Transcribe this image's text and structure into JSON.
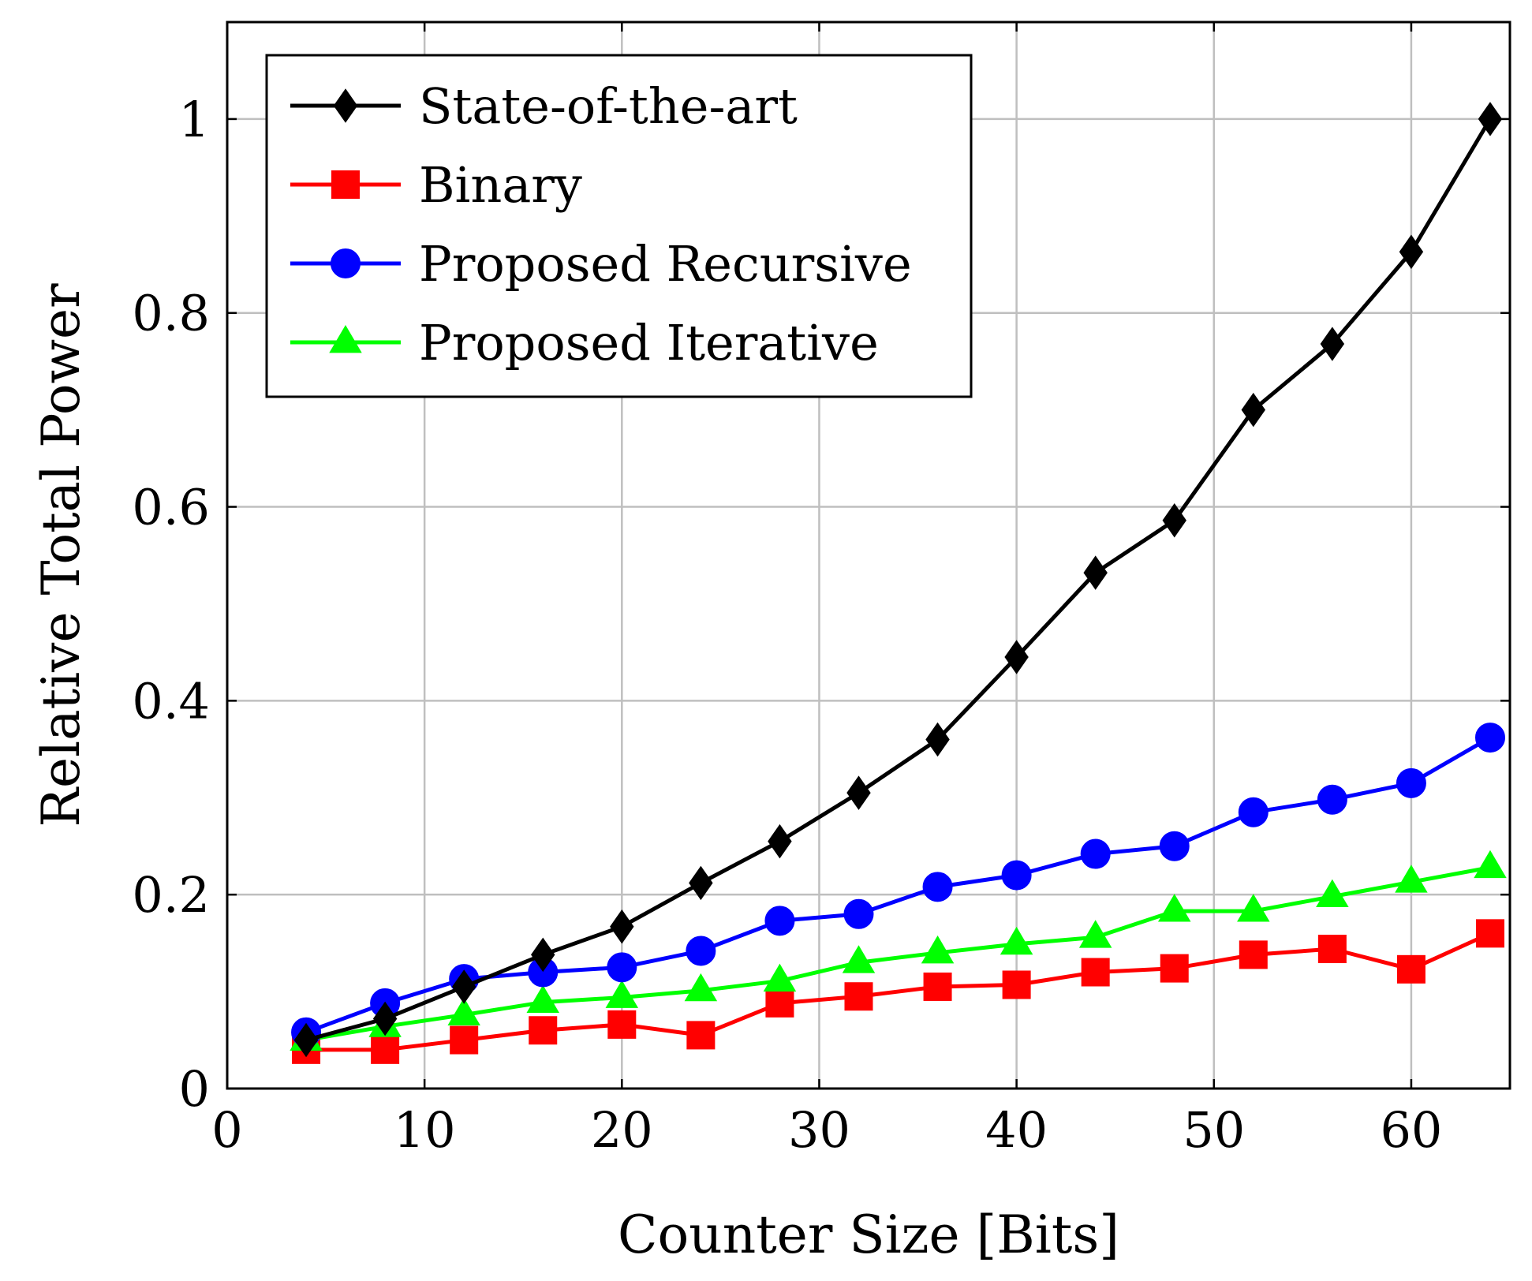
{
  "chart_data": {
    "type": "line",
    "xlabel": "Counter Size [Bits]",
    "ylabel": "Relative Total Power",
    "xlim": [
      0,
      65
    ],
    "ylim": [
      0,
      1.1
    ],
    "x_ticks": [
      0,
      10,
      20,
      30,
      40,
      50,
      60
    ],
    "y_ticks": [
      0,
      0.2,
      0.4,
      0.6,
      0.8,
      1
    ],
    "x_tick_labels": [
      "0",
      "10",
      "20",
      "30",
      "40",
      "50",
      "60"
    ],
    "y_tick_labels": [
      "0",
      "0.2",
      "0.4",
      "0.6",
      "0.8",
      "1"
    ],
    "grid": true,
    "legend_position": "top-left",
    "x": [
      4,
      8,
      12,
      16,
      20,
      24,
      28,
      32,
      36,
      40,
      44,
      48,
      52,
      56,
      60,
      64
    ],
    "series": [
      {
        "name": "State-of-the-art",
        "color": "#000000",
        "marker": "diamond",
        "values": [
          0.05,
          0.072,
          0.105,
          0.138,
          0.167,
          0.212,
          0.255,
          0.305,
          0.36,
          0.445,
          0.532,
          0.586,
          0.7,
          0.768,
          0.863,
          1.0
        ]
      },
      {
        "name": "Binary",
        "color": "#ff0000",
        "marker": "square",
        "values": [
          0.04,
          0.04,
          0.05,
          0.06,
          0.066,
          0.055,
          0.088,
          0.095,
          0.105,
          0.107,
          0.12,
          0.124,
          0.138,
          0.144,
          0.123,
          0.16
        ]
      },
      {
        "name": "Proposed Recursive",
        "color": "#0000ff",
        "marker": "circle",
        "values": [
          0.058,
          0.088,
          0.113,
          0.12,
          0.125,
          0.142,
          0.173,
          0.18,
          0.208,
          0.22,
          0.242,
          0.25,
          0.285,
          0.298,
          0.315,
          0.362
        ]
      },
      {
        "name": "Proposed Iterative",
        "color": "#00ff00",
        "marker": "triangle",
        "values": [
          0.05,
          0.064,
          0.076,
          0.089,
          0.094,
          0.101,
          0.111,
          0.13,
          0.14,
          0.149,
          0.156,
          0.183,
          0.183,
          0.198,
          0.213,
          0.228
        ]
      }
    ]
  }
}
